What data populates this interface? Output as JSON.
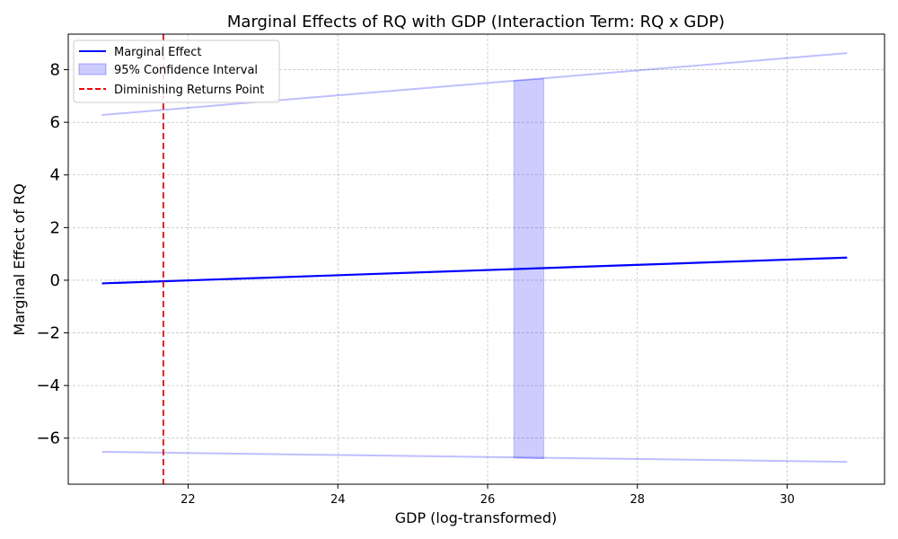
{
  "chart_data": {
    "type": "line",
    "title": "Marginal Effects of RQ with GDP (Interaction Term: RQ x GDP)",
    "xlabel": "GDP (log-transformed)",
    "ylabel": "Marginal Effect of RQ",
    "xlim": [
      20.4,
      31.3
    ],
    "ylim": [
      -7.75,
      9.35
    ],
    "x_ticks": [
      22,
      24,
      26,
      28,
      30
    ],
    "x_tick_labels": [
      "22",
      "24",
      "26",
      "28",
      "30"
    ],
    "y_ticks": [
      -6,
      -4,
      -2,
      0,
      2,
      4,
      6,
      8
    ],
    "y_tick_labels": [
      "−6",
      "−4",
      "−2",
      "0",
      "2",
      "4",
      "6",
      "8"
    ],
    "grid": true,
    "legend_position": "top-left",
    "series": [
      {
        "name": "Marginal Effect",
        "kind": "line",
        "color": "#0000ff",
        "x": [
          20.85,
          30.8
        ],
        "y": [
          -0.12,
          0.86
        ]
      },
      {
        "name": "95% Confidence Interval",
        "kind": "band",
        "color": "#0000ff",
        "opacity": 0.2,
        "x": [
          20.85,
          30.8
        ],
        "upper": [
          6.28,
          8.63
        ],
        "lower": [
          -6.52,
          -6.9
        ],
        "filled_segment": {
          "x": [
            26.35,
            26.75
          ],
          "upper": [
            7.58,
            7.66
          ],
          "lower": [
            -6.75,
            -6.78
          ]
        }
      },
      {
        "name": "Diminishing Returns Point",
        "kind": "vline",
        "color": "#ff0000",
        "style": "dashed",
        "x": 21.67
      }
    ]
  }
}
